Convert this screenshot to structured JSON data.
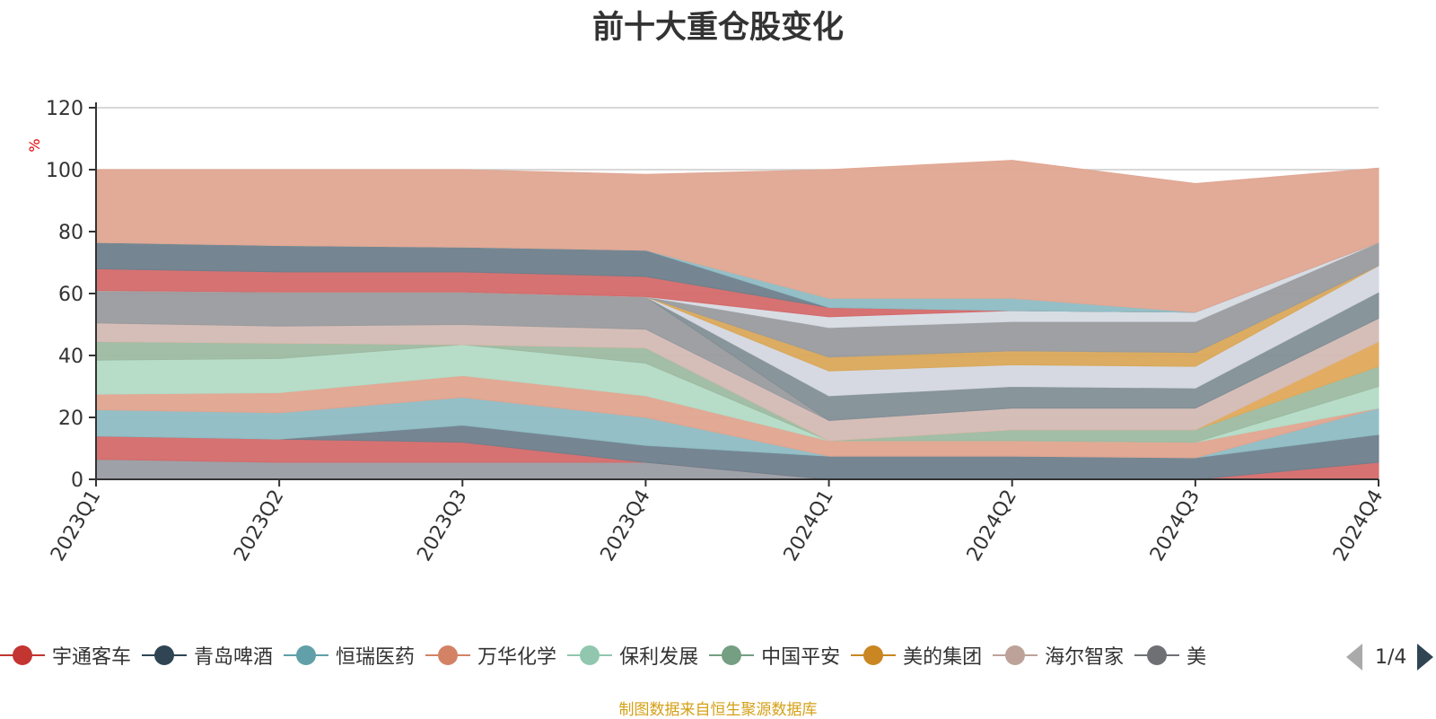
{
  "chart_data": {
    "type": "area",
    "stacked": true,
    "title": "前十大重仓股变化",
    "ylabel": "%",
    "ylim": [
      0,
      120
    ],
    "yticks": [
      0,
      20,
      40,
      60,
      80,
      100,
      120
    ],
    "grid": true,
    "legend_position": "bottom",
    "categories": [
      "2023Q1",
      "2023Q2",
      "2023Q3",
      "2023Q4",
      "2024Q1",
      "2024Q2",
      "2024Q3",
      "2024Q4"
    ],
    "series": [
      {
        "name": "",
        "color": "#999ca3",
        "values": [
          6.5,
          5.5,
          5.5,
          5.5,
          0,
          0,
          0,
          0
        ]
      },
      {
        "name": "宇通客车",
        "color": "#d46a6a",
        "values": [
          7.5,
          7.5,
          6.5,
          0,
          0,
          0,
          0,
          5.5
        ]
      },
      {
        "name": "青岛啤酒",
        "color": "#6e7f8c",
        "values": [
          0,
          0,
          5.5,
          5.5,
          7.5,
          7.5,
          7.0,
          9.0
        ]
      },
      {
        "name": "恒瑞医药",
        "color": "#8fbcc4",
        "values": [
          8.5,
          8.5,
          9.0,
          9.0,
          0,
          0,
          0,
          8.5
        ]
      },
      {
        "name": "万华化学",
        "color": "#e0a48f",
        "values": [
          5.0,
          6.5,
          7.0,
          7.0,
          5.0,
          5.0,
          5.0,
          0
        ]
      },
      {
        "name": "保利发展",
        "color": "#b3dbc6",
        "values": [
          11.0,
          11.0,
          10.0,
          10.5,
          0,
          0,
          0,
          7.0
        ]
      },
      {
        "name": "中国平安",
        "color": "#9dbaa1",
        "values": [
          6.0,
          5.0,
          0,
          5.0,
          0,
          3.5,
          4.0,
          6.5
        ]
      },
      {
        "name": "美的集团",
        "color": "#e0a95a",
        "values": [
          0,
          0,
          0,
          0,
          0,
          0,
          0,
          8.0
        ]
      },
      {
        "name": "海尔智家",
        "color": "#d4bbb4",
        "values": [
          6.0,
          5.5,
          6.5,
          6.0,
          6.5,
          7.0,
          7.0,
          7.5
        ]
      },
      {
        "name": "",
        "color": "#9a9b9e",
        "values": [
          10.5,
          11.0,
          10.5,
          10.5,
          0,
          0,
          0,
          0
        ]
      },
      {
        "name": "",
        "color": "#828f96",
        "values": [
          0,
          0,
          0,
          0,
          8.0,
          7.0,
          6.5,
          8.5
        ]
      },
      {
        "name": "",
        "color": "#d4d7e0",
        "values": [
          0,
          0,
          0,
          0,
          8.0,
          7.0,
          7.0,
          8.5
        ]
      },
      {
        "name": "",
        "color": "#d9a85a",
        "values": [
          0,
          0,
          0,
          0,
          4.5,
          4.5,
          4.5,
          0
        ]
      },
      {
        "name": "",
        "color": "#9a9b9e",
        "values": [
          0,
          0,
          0,
          0,
          9.5,
          9.5,
          10.0,
          7.5
        ]
      },
      {
        "name": "",
        "color": "#d6dbe3",
        "values": [
          0,
          0,
          0,
          0,
          3.5,
          3.5,
          3.0,
          0
        ]
      },
      {
        "name": "",
        "color": "#d46a6a",
        "values": [
          7.0,
          6.5,
          6.5,
          6.5,
          3.0,
          0,
          0,
          0
        ]
      },
      {
        "name": "",
        "color": "#6e7f8c",
        "values": [
          8.5,
          8.5,
          8.0,
          8.5,
          0,
          0,
          0,
          0
        ]
      },
      {
        "name": "",
        "color": "#8fbcc4",
        "values": [
          0,
          0,
          0,
          0,
          3.0,
          4.0,
          0,
          0
        ]
      },
      {
        "name": "",
        "color": "#e0a792",
        "values": [
          23.5,
          24.5,
          25.0,
          24.5,
          41.5,
          44.5,
          41.5,
          24.0
        ]
      }
    ]
  },
  "legend": {
    "items": [
      {
        "label": "宇通客车",
        "color": "#c23531"
      },
      {
        "label": "青岛啤酒",
        "color": "#2f4554"
      },
      {
        "label": "恒瑞医药",
        "color": "#61a0a8"
      },
      {
        "label": "万华化学",
        "color": "#d48265"
      },
      {
        "label": "保利发展",
        "color": "#91c7ae"
      },
      {
        "label": "中国平安",
        "color": "#749f83"
      },
      {
        "label": "美的集团",
        "color": "#ca8622"
      },
      {
        "label": "海尔智家",
        "color": "#bda29a"
      },
      {
        "label": "美",
        "color": "#6e7074"
      }
    ],
    "pager": "1/4"
  },
  "source_note": "制图数据来自恒生聚源数据库"
}
